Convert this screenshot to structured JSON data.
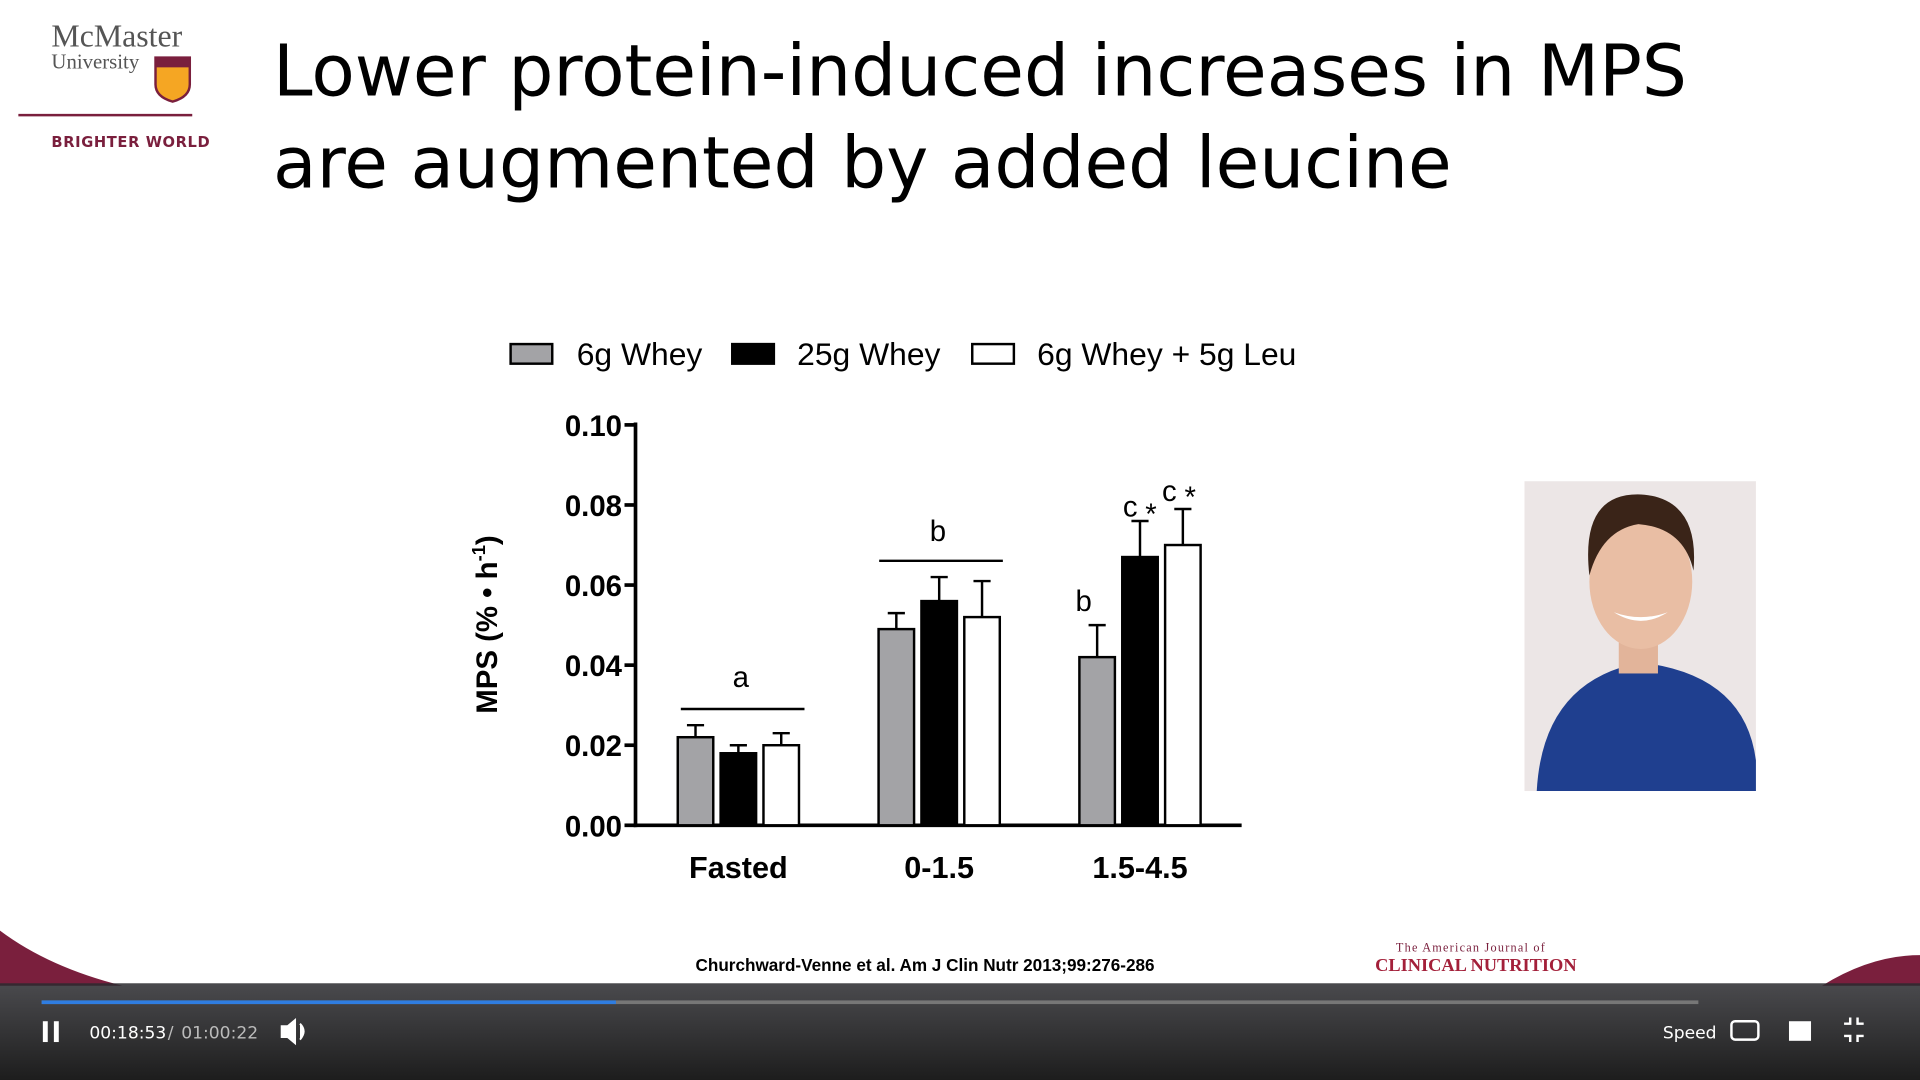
{
  "logo": {
    "name": "McMaster",
    "sub": "University",
    "tagline": "BRIGHTER WORLD"
  },
  "slide": {
    "title_lines": [
      "Lower protein-induced increases in MPS",
      "are augmented by added leucine"
    ],
    "citation": "Churchward-Venne et al. Am J Clin Nutr 2013;99:276-286",
    "journal": [
      "The American Journal of",
      "CLINICAL NUTRITION"
    ]
  },
  "chart_data": {
    "type": "bar",
    "categories": [
      "Fasted",
      "0-1.5",
      "1.5-4.5"
    ],
    "y_label": [
      "MPS (% • h",
      "-1",
      ")"
    ],
    "series": [
      {
        "name": "6g Whey",
        "color": "#a3a3a6",
        "values": [
          0.022,
          0.049,
          0.042
        ],
        "errors": [
          0.003,
          0.004,
          0.008
        ]
      },
      {
        "name": "25g Whey",
        "color": "#000000",
        "values": [
          0.018,
          0.056,
          0.067
        ],
        "errors": [
          0.002,
          0.006,
          0.009
        ]
      },
      {
        "name": "6g Whey + 5g Leu",
        "color": "#ffffff",
        "values": [
          0.02,
          0.052,
          0.07
        ],
        "errors": [
          0.003,
          0.009,
          0.009
        ]
      }
    ],
    "ylim": [
      0,
      0.1
    ],
    "yticks": [
      {
        "value": 0,
        "label": "0.00"
      },
      {
        "value": 0.02,
        "label": "0.02"
      },
      {
        "value": 0.04,
        "label": "0.04"
      },
      {
        "value": 0.06,
        "label": "0.06"
      },
      {
        "value": 0.08,
        "label": "0.08"
      },
      {
        "value": 0.1,
        "label": "0.10"
      }
    ],
    "annotations": [
      "a",
      "b",
      "b",
      "c",
      "*",
      "c",
      "*"
    ]
  },
  "player": {
    "current_time": "00:18:53",
    "separator": "/",
    "duration": "01:00:22",
    "speed": "Speed"
  }
}
